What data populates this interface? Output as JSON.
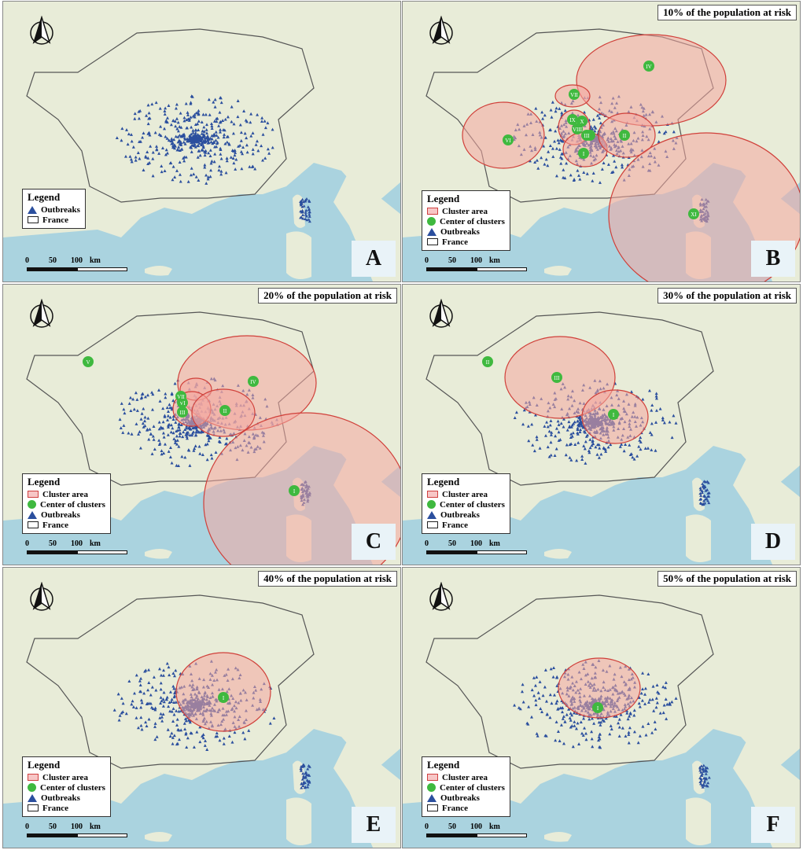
{
  "panels": [
    {
      "letter": "A",
      "title": "",
      "legend": [
        "Outbreaks",
        "France"
      ],
      "clusters": []
    },
    {
      "letter": "B",
      "title": "10% of the population at risk",
      "legend": [
        "Cluster area",
        "Center of clusters",
        "Outbreaks",
        "France"
      ],
      "clusters": [
        "IV",
        "VI",
        "VII",
        "X",
        "IX",
        "VIII",
        "V",
        "III",
        "II",
        "I",
        "XI"
      ]
    },
    {
      "letter": "C",
      "title": "20% of the population at risk",
      "legend": [
        "Cluster area",
        "Center of clusters",
        "Outbreaks",
        "France"
      ],
      "clusters": [
        "IV",
        "V",
        "VI",
        "VII",
        "III",
        "II",
        "I"
      ]
    },
    {
      "letter": "D",
      "title": "30% of the population at risk",
      "legend": [
        "Cluster area",
        "Center of clusters",
        "Outbreaks",
        "France"
      ],
      "clusters": [
        "II",
        "III",
        "I"
      ]
    },
    {
      "letter": "E",
      "title": "40% of the population at risk",
      "legend": [
        "Cluster area",
        "Center of clusters",
        "Outbreaks",
        "France"
      ],
      "clusters": [
        "I"
      ]
    },
    {
      "letter": "F",
      "title": "50% of the population at risk",
      "legend": [
        "Cluster area",
        "Center of clusters",
        "Outbreaks",
        "France"
      ],
      "clusters": [
        "I"
      ]
    }
  ],
  "legend_title": "Legend",
  "scale": {
    "t0": "0",
    "t1": "50",
    "t2": "100",
    "unit": "km"
  },
  "colors": {
    "sea": "#aad3df",
    "land": "#e8ecd8",
    "cluster": "#f4a8a0",
    "center": "#3fb93f",
    "outbreak": "#2b4f9e"
  }
}
